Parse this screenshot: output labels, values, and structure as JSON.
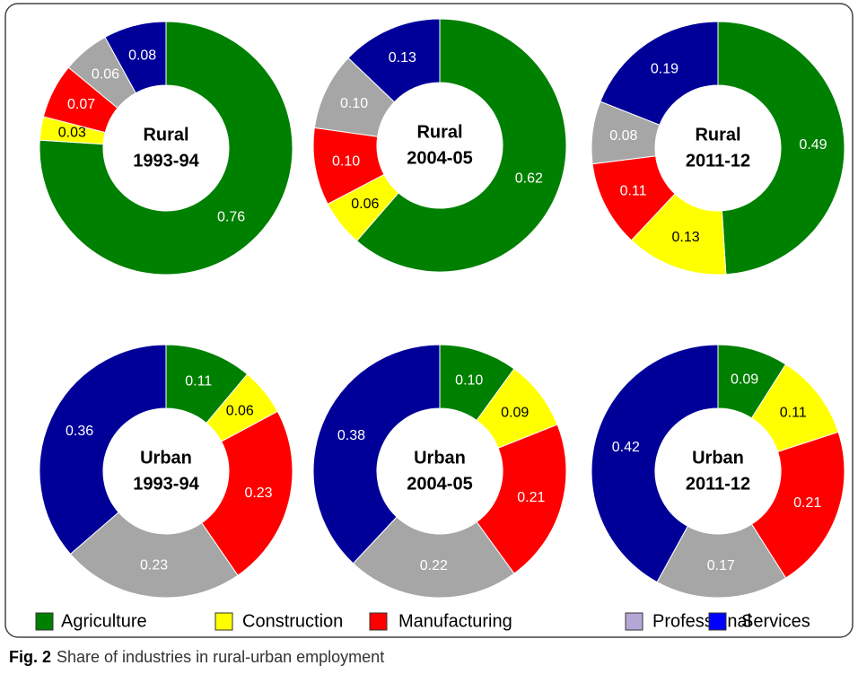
{
  "legend": {
    "categories": [
      "Agriculture",
      "Construction",
      "Manufacturing",
      "Professional",
      "Services"
    ],
    "colors": [
      "#008000",
      "#ffff00",
      "#ff0000",
      "#b4a7d6",
      "#0000ff"
    ]
  },
  "slice_colors": [
    "#008000",
    "#ffff00",
    "#ff0000",
    "#a6a6a6",
    "#000099"
  ],
  "caption_label": "Fig. 2",
  "caption": "Share of industries in rural-urban employment",
  "chart_data": [
    {
      "type": "pie",
      "title": "Rural",
      "subtitle": "1993-94",
      "values": [
        0.76,
        0.03,
        0.07,
        0.06,
        0.08
      ],
      "value_labels": [
        "0.76",
        "0.03",
        "0.07",
        "0.06",
        "0.08"
      ]
    },
    {
      "type": "pie",
      "title": "Rural",
      "subtitle": "2004-05",
      "values": [
        0.62,
        0.06,
        0.1,
        0.1,
        0.13
      ],
      "value_labels": [
        "0.62",
        "0.06",
        "0.10",
        "0.10",
        "0.13"
      ]
    },
    {
      "type": "pie",
      "title": "Rural",
      "subtitle": "2011-12",
      "values": [
        0.49,
        0.13,
        0.11,
        0.08,
        0.19
      ],
      "value_labels": [
        "0.49",
        "0.13",
        "0.11",
        "0.08",
        "0.19"
      ]
    },
    {
      "type": "pie",
      "title": "Urban",
      "subtitle": "1993-94",
      "values": [
        0.11,
        0.06,
        0.23,
        0.23,
        0.36
      ],
      "value_labels": [
        "0.11",
        "0.06",
        "0.23",
        "0.23",
        "0.36"
      ]
    },
    {
      "type": "pie",
      "title": "Urban",
      "subtitle": "2004-05",
      "values": [
        0.1,
        0.09,
        0.21,
        0.22,
        0.38
      ],
      "value_labels": [
        "0.10",
        "0.09",
        "0.21",
        "0.22",
        "0.38"
      ]
    },
    {
      "type": "pie",
      "title": "Urban",
      "subtitle": "2011-12",
      "values": [
        0.09,
        0.11,
        0.21,
        0.17,
        0.42
      ],
      "value_labels": [
        "0.09",
        "0.11",
        "0.21",
        "0.17",
        "0.42"
      ]
    }
  ]
}
